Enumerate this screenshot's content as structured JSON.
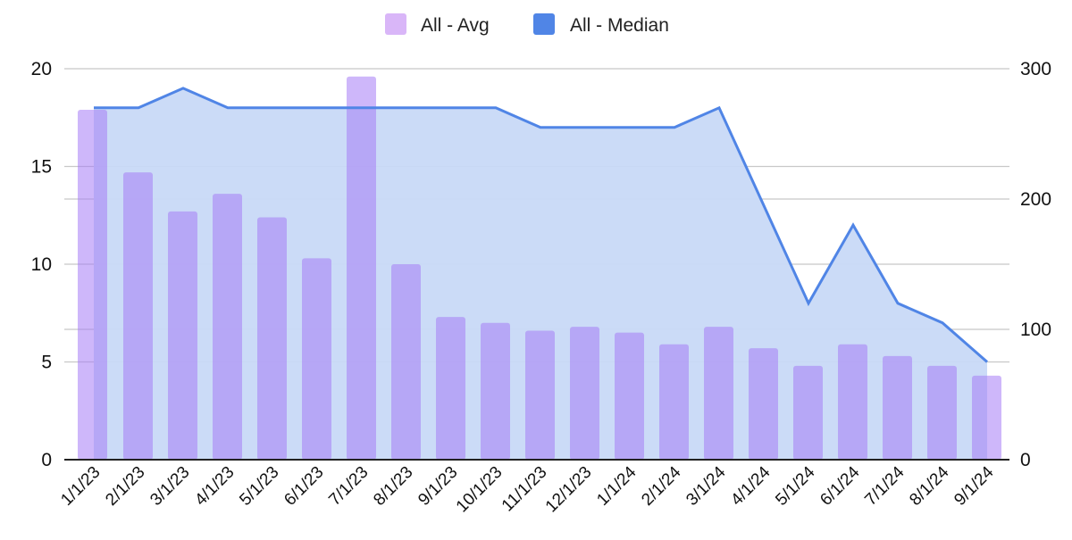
{
  "chart_data": {
    "type": "bar+area",
    "title": "",
    "xlabel": "",
    "ylabel": "",
    "categories": [
      "1/1/23",
      "2/1/23",
      "3/1/23",
      "4/1/23",
      "5/1/23",
      "6/1/23",
      "7/1/23",
      "8/1/23",
      "9/1/23",
      "10/1/23",
      "11/1/23",
      "12/1/23",
      "1/1/24",
      "2/1/24",
      "3/1/24",
      "4/1/24",
      "5/1/24",
      "6/1/24",
      "7/1/24",
      "8/1/24",
      "9/1/24"
    ],
    "series": [
      {
        "name": "All - Avg",
        "type": "bar",
        "axis": "left",
        "color": "#d9b6f8",
        "values": [
          17.9,
          14.7,
          12.7,
          13.6,
          12.4,
          10.3,
          19.6,
          10.0,
          7.3,
          7.0,
          6.6,
          6.8,
          6.5,
          5.9,
          6.8,
          5.7,
          4.8,
          5.9,
          5.3,
          4.8,
          4.3
        ]
      },
      {
        "name": "All - Median",
        "type": "area",
        "axis": "right",
        "color": "#5085e6",
        "fill": "#c8d9f7",
        "values": [
          270,
          270,
          285,
          270,
          270,
          270,
          270,
          270,
          270,
          270,
          255,
          255,
          255,
          255,
          270,
          195,
          120,
          180,
          120,
          105,
          75
        ]
      }
    ],
    "ylim": [
      0,
      20
    ],
    "y2lim": [
      0,
      300
    ],
    "yticks": [
      "0",
      "5",
      "10",
      "15",
      "20"
    ],
    "y2ticks": [
      "0",
      "100",
      "200",
      "300"
    ],
    "grid": true,
    "legend_position": "top"
  },
  "legend": {
    "items": [
      {
        "label": "All - Avg",
        "color": "#d9b6f8"
      },
      {
        "label": "All - Median",
        "color": "#5085e6"
      }
    ]
  }
}
